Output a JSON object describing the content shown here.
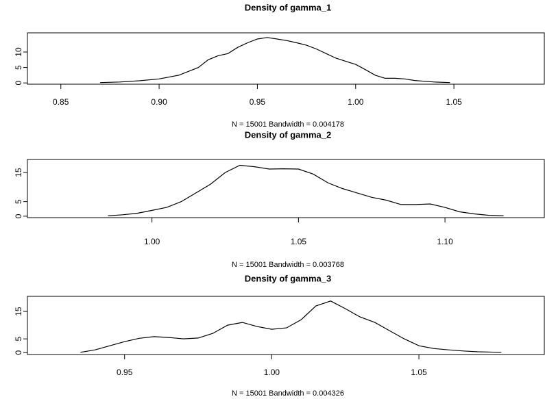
{
  "chart_data": [
    {
      "type": "line",
      "title": "Density of gamma_1",
      "x_label": "N = 15001   Bandwidth = 0.004178",
      "color": "#000000",
      "x": [
        0.87,
        0.88,
        0.89,
        0.9,
        0.91,
        0.92,
        0.925,
        0.93,
        0.935,
        0.94,
        0.945,
        0.95,
        0.955,
        0.96,
        0.965,
        0.97,
        0.975,
        0.98,
        0.985,
        0.99,
        0.995,
        1.0,
        1.005,
        1.01,
        1.015,
        1.02,
        1.025,
        1.03,
        1.04,
        1.048
      ],
      "values": [
        0.1,
        0.3,
        0.7,
        1.3,
        2.5,
        5,
        7.5,
        8.8,
        9.5,
        11.5,
        13,
        14.2,
        14.7,
        14.2,
        13.7,
        13,
        12.2,
        11,
        9.5,
        8,
        7,
        6,
        4.3,
        2.5,
        1.5,
        1.5,
        1.3,
        0.8,
        0.3,
        0.1
      ],
      "xlim": [
        0.833,
        1.096
      ],
      "ylim": [
        -0.4,
        16.2
      ],
      "xticks": [
        {
          "value": 0.85,
          "label": "0.85"
        },
        {
          "value": 0.9,
          "label": "0.90"
        },
        {
          "value": 0.95,
          "label": "0.95"
        },
        {
          "value": 1.0,
          "label": "1.00"
        },
        {
          "value": 1.05,
          "label": "1.05"
        }
      ],
      "yticks": [
        0,
        5,
        10
      ]
    },
    {
      "type": "line",
      "title": "Density of gamma_2",
      "x_label": "N = 15001   Bandwidth = 0.003768",
      "color": "#000000",
      "x": [
        0.985,
        0.99,
        0.995,
        1.0,
        1.005,
        1.01,
        1.015,
        1.02,
        1.025,
        1.03,
        1.035,
        1.04,
        1.045,
        1.05,
        1.055,
        1.06,
        1.065,
        1.07,
        1.075,
        1.08,
        1.085,
        1.09,
        1.095,
        1.1,
        1.105,
        1.11,
        1.115,
        1.12
      ],
      "values": [
        0.1,
        0.5,
        1,
        2,
        3,
        5,
        8,
        11,
        15,
        17.5,
        17,
        16.2,
        16.3,
        16.2,
        14.5,
        11.5,
        9.5,
        8,
        6.5,
        5.5,
        4,
        4,
        4.2,
        3,
        1.5,
        0.8,
        0.3,
        0.1
      ],
      "xlim": [
        0.9575,
        1.1339
      ],
      "ylim": [
        -0.5,
        19.5
      ],
      "xticks": [
        {
          "value": 1.0,
          "label": "1.00"
        },
        {
          "value": 1.05,
          "label": "1.05"
        },
        {
          "value": 1.1,
          "label": "1.10"
        }
      ],
      "yticks": [
        0,
        5,
        15
      ]
    },
    {
      "type": "line",
      "title": "Density of gamma_3",
      "x_label": "N = 15001   Bandwidth = 0.004326",
      "color": "#000000",
      "x": [
        0.935,
        0.94,
        0.945,
        0.95,
        0.955,
        0.96,
        0.965,
        0.97,
        0.975,
        0.98,
        0.985,
        0.99,
        0.995,
        1.0,
        1.005,
        1.01,
        1.015,
        1.02,
        1.025,
        1.03,
        1.035,
        1.04,
        1.045,
        1.05,
        1.055,
        1.06,
        1.065,
        1.07,
        1.078
      ],
      "values": [
        0.1,
        1,
        2.5,
        4,
        5.2,
        5.8,
        5.5,
        5,
        5.3,
        7,
        10,
        11,
        9.5,
        8.5,
        9,
        12,
        17,
        18.8,
        16,
        13,
        11,
        8,
        5,
        2.5,
        1.5,
        1,
        0.6,
        0.3,
        0.1
      ],
      "xlim": [
        0.917,
        1.0926
      ],
      "ylim": [
        -0.7,
        20.5
      ],
      "xticks": [
        {
          "value": 0.95,
          "label": "0.95"
        },
        {
          "value": 1.0,
          "label": "1.00"
        },
        {
          "value": 1.05,
          "label": "1.05"
        }
      ],
      "yticks": [
        0,
        5,
        15
      ]
    }
  ]
}
